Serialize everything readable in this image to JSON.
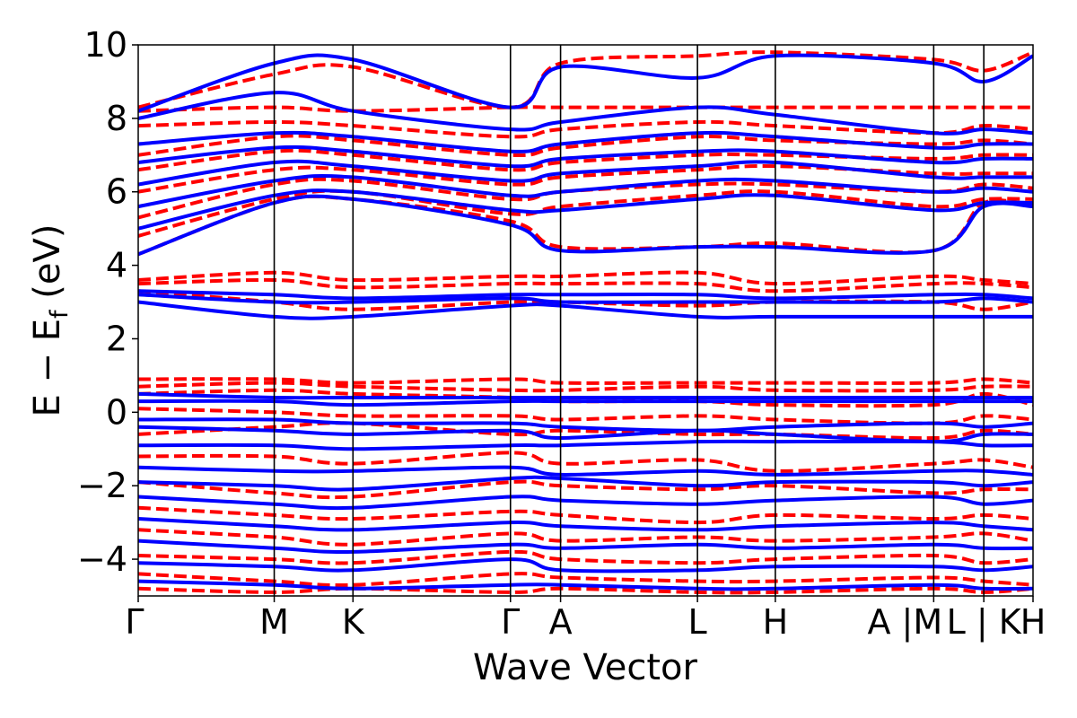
{
  "chart_data": {
    "type": "line",
    "title": "",
    "xlabel": "Wave Vector",
    "ylabel": "E − E_f (eV)",
    "ylabel_main": "E − E",
    "ylabel_sub": "f",
    "ylabel_unit": " (eV)",
    "ylim": [
      -5,
      10
    ],
    "xlim": [
      0,
      1
    ],
    "yticks": [
      -4,
      -2,
      0,
      2,
      4,
      6,
      8,
      10
    ],
    "ytick_labels": [
      "−4",
      "−2",
      "0",
      "2",
      "4",
      "6",
      "8",
      "10"
    ],
    "grid": false,
    "legend": "none",
    "kpoints": [
      {
        "label": "Γ",
        "x": 0.0
      },
      {
        "label": "M",
        "x": 0.152
      },
      {
        "label": "K",
        "x": 0.24
      },
      {
        "label": "Γ",
        "x": 0.416
      },
      {
        "label": "A",
        "x": 0.472
      },
      {
        "label": "L",
        "x": 0.625
      },
      {
        "label": "H",
        "x": 0.712
      },
      {
        "label": "A",
        "x": 0.889
      },
      {
        "label": "M",
        "x": 0.945
      },
      {
        "label": "L",
        "x": 1.0
      }
    ],
    "x_tick_labels_text": [
      "Γ",
      "M",
      "K",
      "Γ",
      "A",
      "L",
      "H",
      "A |M",
      "L | K",
      "H"
    ],
    "series": [
      {
        "style": "dashed",
        "color": "#ff0000",
        "bands": [
          [
            4.3,
            5.7,
            5.8,
            5.2,
            4.5,
            4.5,
            4.6,
            4.4,
            5.7,
            5.6
          ],
          [
            4.8,
            5.8,
            6.0,
            5.4,
            5.6,
            5.9,
            6.0,
            5.6,
            5.8,
            5.8
          ],
          [
            5.3,
            6.2,
            6.3,
            5.8,
            6.0,
            6.2,
            6.2,
            6.0,
            6.2,
            6.1
          ],
          [
            6.0,
            6.6,
            6.6,
            6.2,
            6.4,
            6.6,
            6.7,
            6.5,
            6.5,
            6.5
          ],
          [
            6.6,
            7.1,
            7.0,
            6.6,
            6.8,
            7.0,
            7.0,
            6.9,
            7.0,
            7.0
          ],
          [
            7.0,
            7.5,
            7.4,
            7.0,
            7.2,
            7.5,
            7.4,
            7.3,
            7.4,
            7.3
          ],
          [
            7.8,
            7.9,
            7.8,
            7.5,
            7.7,
            7.9,
            7.8,
            7.6,
            7.8,
            7.7
          ],
          [
            8.2,
            8.3,
            8.2,
            8.3,
            8.3,
            8.3,
            8.3,
            8.3,
            8.3,
            8.3
          ],
          [
            8.3,
            9.2,
            9.4,
            8.3,
            9.5,
            9.7,
            9.8,
            9.6,
            9.3,
            9.8
          ],
          [
            3.6,
            3.8,
            3.6,
            3.7,
            3.7,
            3.8,
            3.5,
            3.7,
            3.6,
            3.5
          ],
          [
            3.5,
            3.6,
            3.4,
            3.5,
            3.5,
            3.5,
            3.3,
            3.5,
            3.5,
            3.4
          ],
          [
            3.3,
            3.0,
            2.8,
            3.0,
            3.0,
            2.9,
            3.0,
            3.0,
            2.8,
            3.0
          ],
          [
            0.9,
            0.9,
            0.8,
            0.9,
            0.8,
            0.8,
            0.8,
            0.8,
            0.9,
            0.8
          ],
          [
            0.7,
            0.8,
            0.7,
            0.6,
            0.6,
            0.7,
            0.6,
            0.6,
            0.7,
            0.7
          ],
          [
            0.5,
            0.6,
            0.5,
            0.4,
            0.3,
            0.3,
            0.2,
            0.2,
            0.5,
            0.2
          ],
          [
            0.1,
            0.0,
            -0.1,
            -0.1,
            -0.2,
            -0.1,
            -0.2,
            -0.3,
            -0.1,
            -0.2
          ],
          [
            -0.6,
            -0.4,
            -0.3,
            -0.6,
            -0.5,
            -0.6,
            -0.6,
            -0.7,
            -0.5,
            -0.6
          ],
          [
            -1.2,
            -1.2,
            -1.4,
            -1.1,
            -1.4,
            -1.3,
            -1.6,
            -1.4,
            -1.3,
            -1.5
          ],
          [
            -1.9,
            -2.2,
            -2.3,
            -1.9,
            -2.0,
            -2.1,
            -2.0,
            -2.2,
            -2.1,
            -2.1
          ],
          [
            -2.6,
            -2.8,
            -2.9,
            -2.7,
            -2.8,
            -3.0,
            -2.8,
            -2.9,
            -2.8,
            -2.9
          ],
          [
            -3.2,
            -3.4,
            -3.6,
            -3.3,
            -3.5,
            -3.4,
            -3.5,
            -3.4,
            -3.3,
            -3.5
          ],
          [
            -3.9,
            -4.0,
            -4.1,
            -3.8,
            -4.0,
            -4.1,
            -4.0,
            -3.9,
            -4.1,
            -4.0
          ],
          [
            -4.4,
            -4.6,
            -4.7,
            -4.4,
            -4.5,
            -4.6,
            -4.6,
            -4.5,
            -4.6,
            -4.7
          ],
          [
            -4.8,
            -4.9,
            -4.8,
            -4.9,
            -4.8,
            -4.9,
            -4.9,
            -4.8,
            -4.9,
            -4.8
          ]
        ]
      },
      {
        "style": "solid",
        "color": "#0000ff",
        "bands": [
          [
            4.3,
            5.7,
            5.8,
            5.1,
            4.4,
            4.5,
            4.5,
            4.4,
            5.6,
            5.6
          ],
          [
            5.0,
            5.9,
            6.0,
            5.5,
            5.5,
            5.8,
            5.9,
            5.5,
            5.7,
            5.7
          ],
          [
            5.6,
            6.3,
            6.4,
            5.9,
            6.0,
            6.3,
            6.3,
            6.0,
            6.1,
            6.0
          ],
          [
            6.2,
            6.8,
            6.7,
            6.3,
            6.5,
            6.7,
            6.8,
            6.4,
            6.4,
            6.4
          ],
          [
            6.8,
            7.2,
            7.1,
            6.7,
            6.9,
            7.1,
            7.1,
            6.8,
            6.9,
            6.9
          ],
          [
            7.3,
            7.6,
            7.5,
            7.1,
            7.3,
            7.6,
            7.5,
            7.2,
            7.3,
            7.3
          ],
          [
            8.0,
            8.7,
            8.2,
            7.7,
            7.9,
            8.3,
            8.1,
            7.6,
            7.7,
            7.6
          ],
          [
            8.2,
            9.5,
            9.6,
            8.3,
            9.4,
            9.1,
            9.7,
            9.5,
            9.0,
            9.7
          ],
          [
            3.3,
            3.2,
            3.1,
            3.2,
            3.2,
            3.2,
            3.1,
            3.2,
            3.2,
            3.1
          ],
          [
            3.2,
            3.0,
            3.0,
            3.1,
            3.0,
            3.0,
            3.0,
            3.0,
            3.1,
            3.0
          ],
          [
            3.0,
            2.6,
            2.6,
            2.9,
            2.9,
            2.6,
            2.6,
            2.6,
            2.6,
            2.6
          ],
          [
            0.5,
            0.4,
            0.4,
            0.4,
            0.4,
            0.4,
            0.4,
            0.4,
            0.4,
            0.4
          ],
          [
            0.3,
            0.3,
            0.2,
            0.3,
            0.3,
            0.3,
            0.3,
            0.3,
            0.3,
            0.3
          ],
          [
            -0.2,
            -0.2,
            -0.3,
            -0.3,
            -0.4,
            -0.5,
            -0.4,
            -0.3,
            -0.4,
            -0.3
          ],
          [
            -0.4,
            -0.5,
            -0.6,
            -0.5,
            -0.7,
            -0.5,
            -0.6,
            -0.8,
            -0.6,
            -0.6
          ],
          [
            -0.9,
            -0.9,
            -1.0,
            -0.9,
            -0.9,
            -0.8,
            -0.8,
            -0.8,
            -0.9,
            -0.9
          ],
          [
            -1.5,
            -1.6,
            -1.6,
            -1.5,
            -1.7,
            -1.6,
            -1.7,
            -1.6,
            -1.6,
            -1.7
          ],
          [
            -1.9,
            -2.0,
            -2.1,
            -1.8,
            -1.8,
            -2.0,
            -1.9,
            -1.9,
            -2.0,
            -1.9
          ],
          [
            -2.3,
            -2.5,
            -2.6,
            -2.3,
            -2.4,
            -2.5,
            -2.4,
            -2.3,
            -2.5,
            -2.4
          ],
          [
            -2.9,
            -3.1,
            -3.2,
            -3.0,
            -3.1,
            -3.2,
            -3.1,
            -3.0,
            -3.1,
            -3.2
          ],
          [
            -3.5,
            -3.7,
            -3.8,
            -3.6,
            -3.7,
            -3.6,
            -3.7,
            -3.6,
            -3.7,
            -3.7
          ],
          [
            -4.1,
            -4.2,
            -4.3,
            -4.0,
            -4.3,
            -4.3,
            -4.2,
            -4.2,
            -4.3,
            -4.2
          ],
          [
            -4.6,
            -4.7,
            -4.8,
            -4.7,
            -4.7,
            -4.8,
            -4.8,
            -4.7,
            -4.8,
            -4.8
          ]
        ]
      }
    ]
  }
}
